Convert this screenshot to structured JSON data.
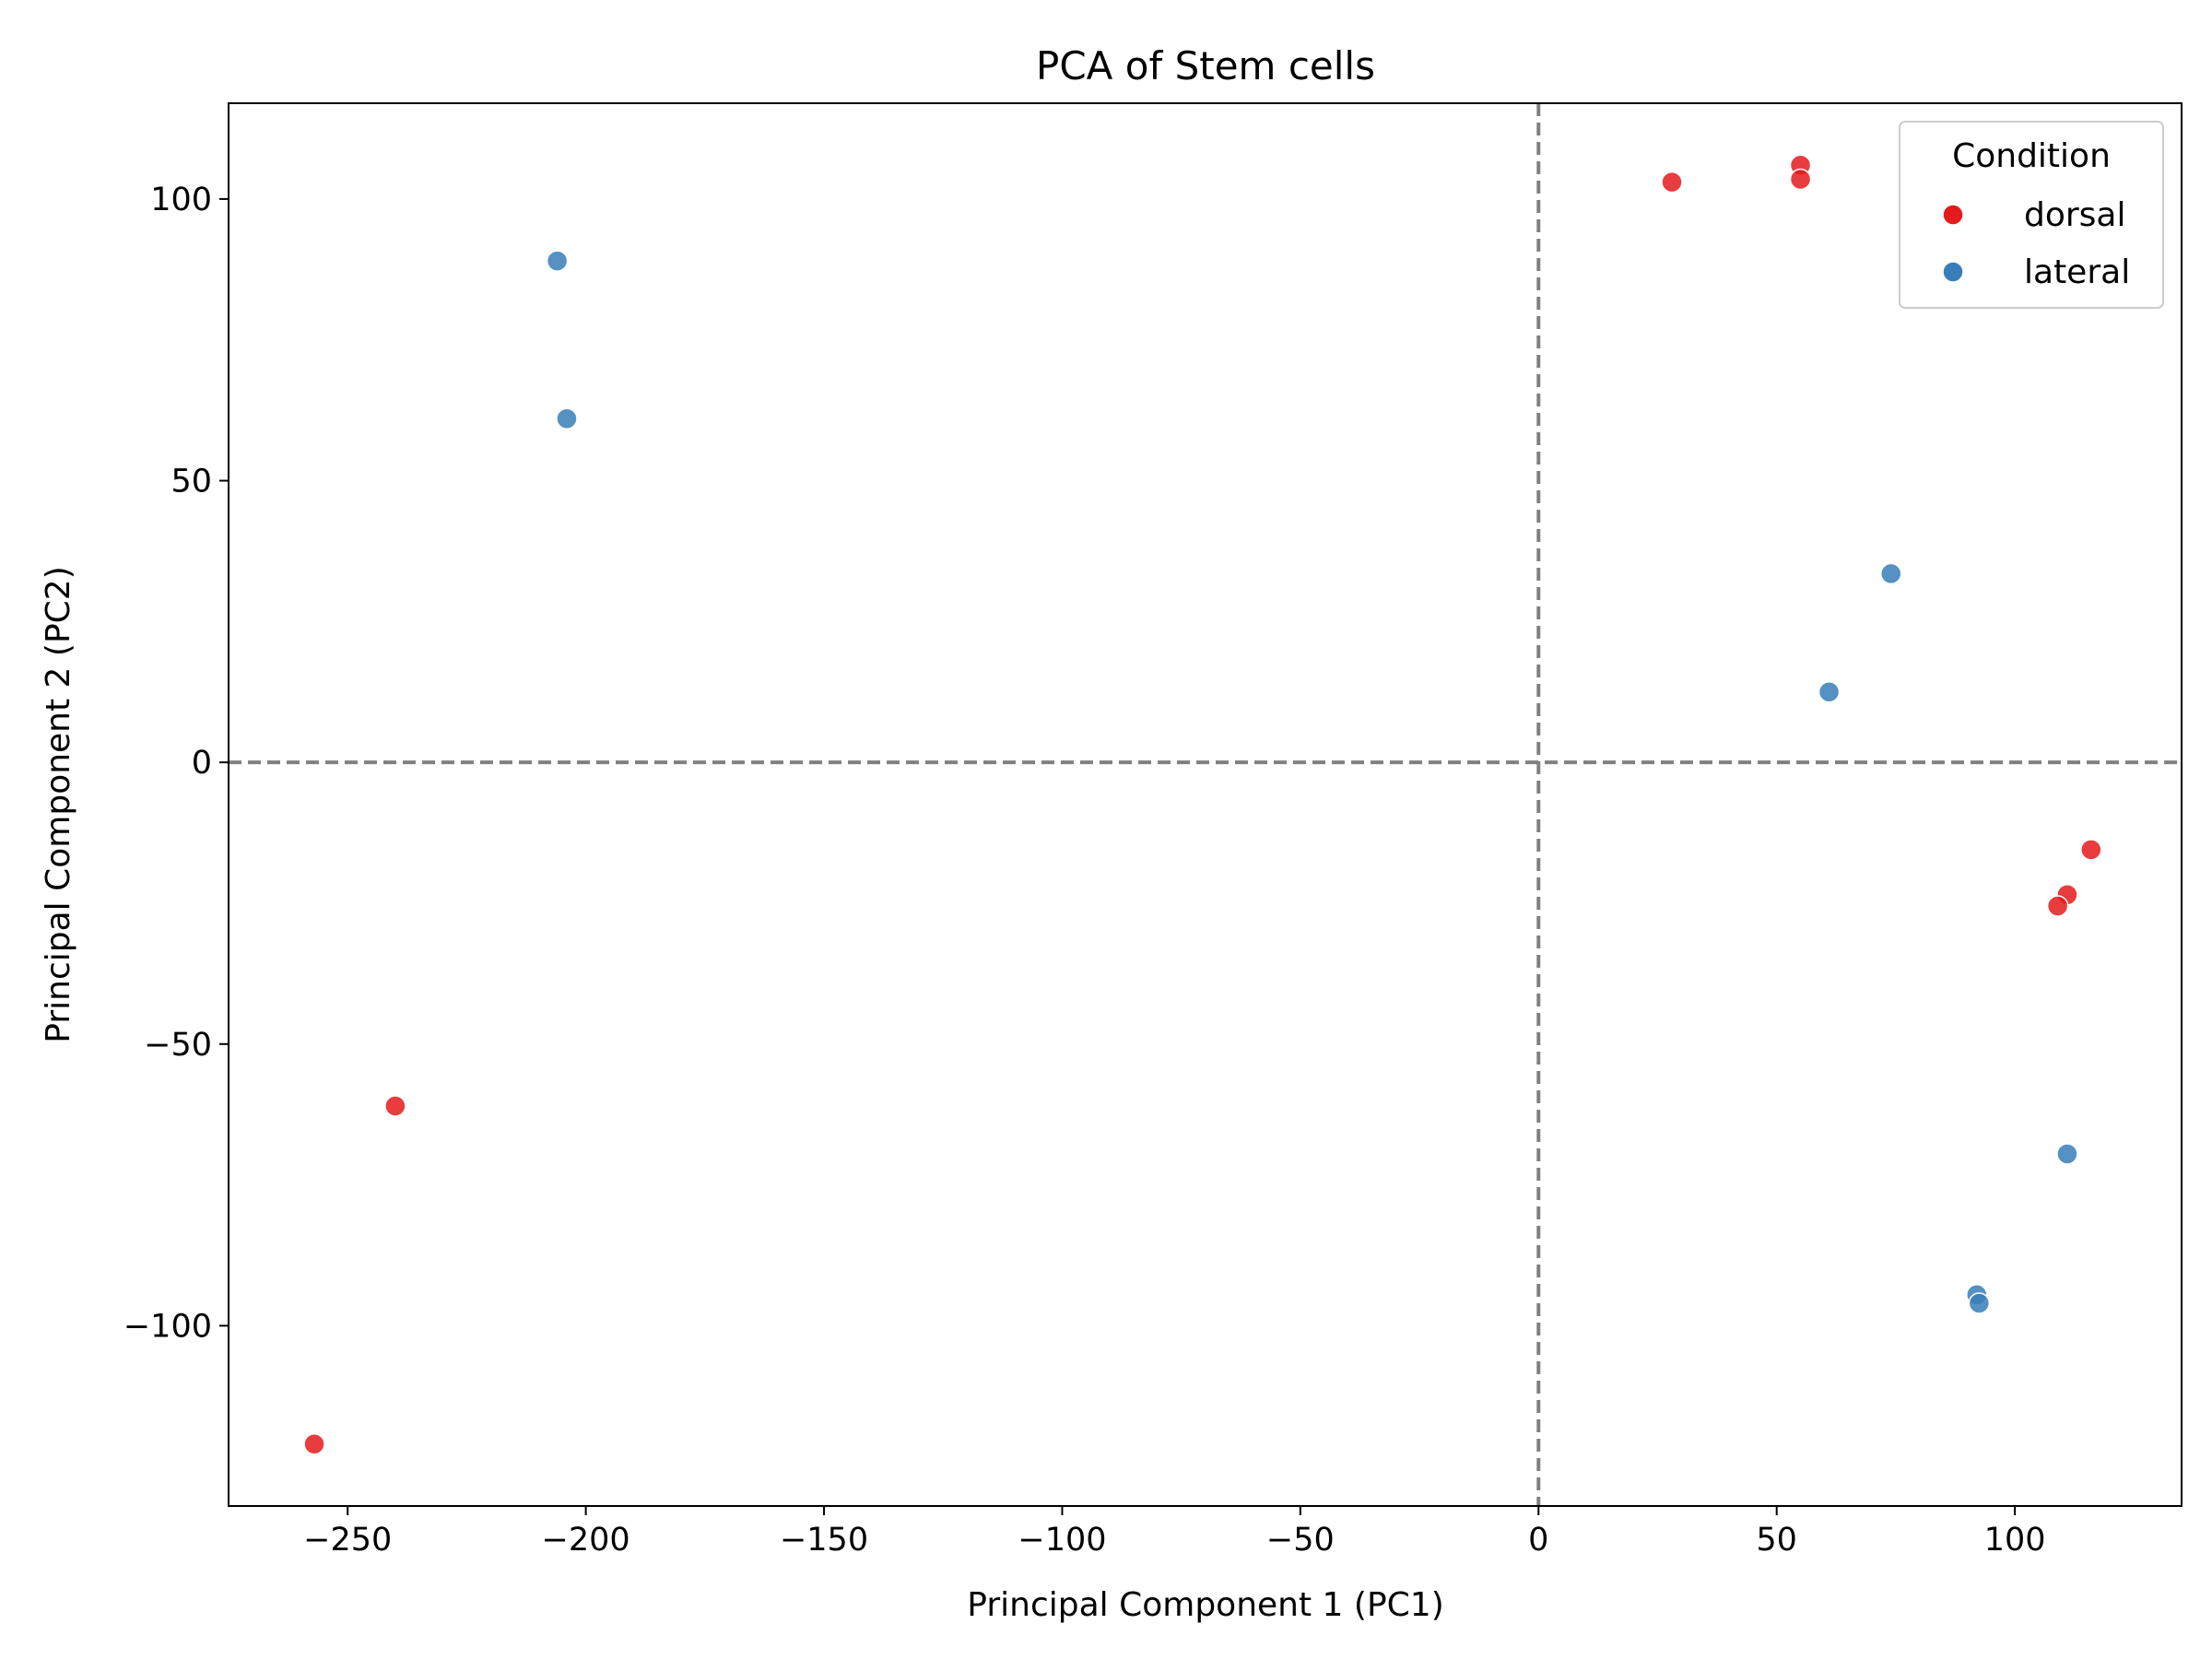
{
  "chart_data": {
    "type": "scatter",
    "title": "PCA of Stem cells",
    "xlabel": "Principal Component 1 (PC1)",
    "ylabel": "Principal Component 2 (PC2)",
    "xlim": [
      -275,
      135
    ],
    "ylim": [
      -132,
      117
    ],
    "xticks": [
      -250,
      -200,
      -150,
      -100,
      -50,
      0,
      50,
      100
    ],
    "yticks": [
      -100,
      -50,
      0,
      50,
      100
    ],
    "xtick_labels": [
      "−250",
      "−200",
      "−150",
      "−100",
      "−50",
      "0",
      "50",
      "100"
    ],
    "ytick_labels": [
      "−100",
      "−50",
      "0",
      "50",
      "100"
    ],
    "grid": false,
    "reference_lines": {
      "x": 0,
      "y": 0,
      "style": "dashed",
      "color": "#808080"
    },
    "legend": {
      "title": "Condition",
      "placement": "top-right"
    },
    "series": [
      {
        "name": "dorsal",
        "color": "#e41a1c",
        "points": [
          [
            28,
            103
          ],
          [
            55,
            106
          ],
          [
            55,
            103.5
          ],
          [
            116,
            -15.5
          ],
          [
            111,
            -23.5
          ],
          [
            109,
            -25.5
          ],
          [
            -240,
            -61
          ],
          [
            -257,
            -121
          ]
        ]
      },
      {
        "name": "lateral",
        "color": "#377eb8",
        "points": [
          [
            -206,
            89
          ],
          [
            -204,
            61
          ],
          [
            74,
            33.5
          ],
          [
            61,
            12.5
          ],
          [
            111,
            -69.5
          ],
          [
            92,
            -94.5
          ],
          [
            92.5,
            -96
          ]
        ]
      }
    ]
  }
}
